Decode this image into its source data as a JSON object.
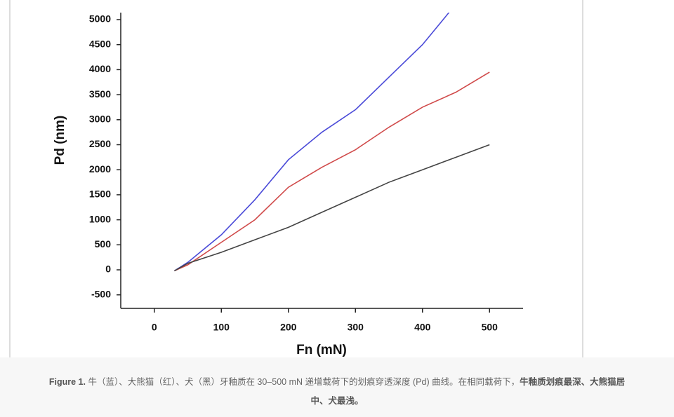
{
  "chart_data": {
    "type": "line",
    "x_label": "Fn (mN)",
    "y_label": "Pd (nm)",
    "xlim": [
      -50,
      550
    ],
    "ylim": [
      -770,
      5140
    ],
    "xticks": [
      0,
      100,
      200,
      300,
      400,
      500
    ],
    "yticks": [
      -500,
      0,
      500,
      1000,
      1500,
      2000,
      2500,
      3000,
      3500,
      4000,
      4500,
      5000
    ],
    "series": [
      {
        "color": "#4a4ad8",
        "x": [
          30,
          50,
          100,
          150,
          200,
          250,
          300,
          350,
          400,
          440
        ],
        "values": [
          -20,
          150,
          700,
          1400,
          2200,
          2750,
          3200,
          3850,
          4500,
          5150
        ]
      },
      {
        "color": "#d04a4a",
        "x": [
          30,
          50,
          100,
          150,
          200,
          250,
          300,
          350,
          400,
          450,
          500
        ],
        "values": [
          -20,
          100,
          550,
          1000,
          1650,
          2050,
          2400,
          2850,
          3250,
          3550,
          3950
        ]
      },
      {
        "color": "#444444",
        "x": [
          30,
          50,
          100,
          150,
          200,
          250,
          300,
          350,
          400,
          450,
          500
        ],
        "values": [
          -20,
          130,
          350,
          600,
          850,
          1150,
          1450,
          1750,
          2000,
          2250,
          2500
        ]
      }
    ]
  },
  "caption": {
    "label": "Figure 1.",
    "text": "牛（蓝）、大熊猫（红）、犬（黑）牙釉质在 30–500 mN 递增载荷下的划痕穿透深度 (Pd) 曲线。在相同载荷下，",
    "emphasis": "牛釉质划痕最深、大熊猫居中、犬最浅。"
  }
}
